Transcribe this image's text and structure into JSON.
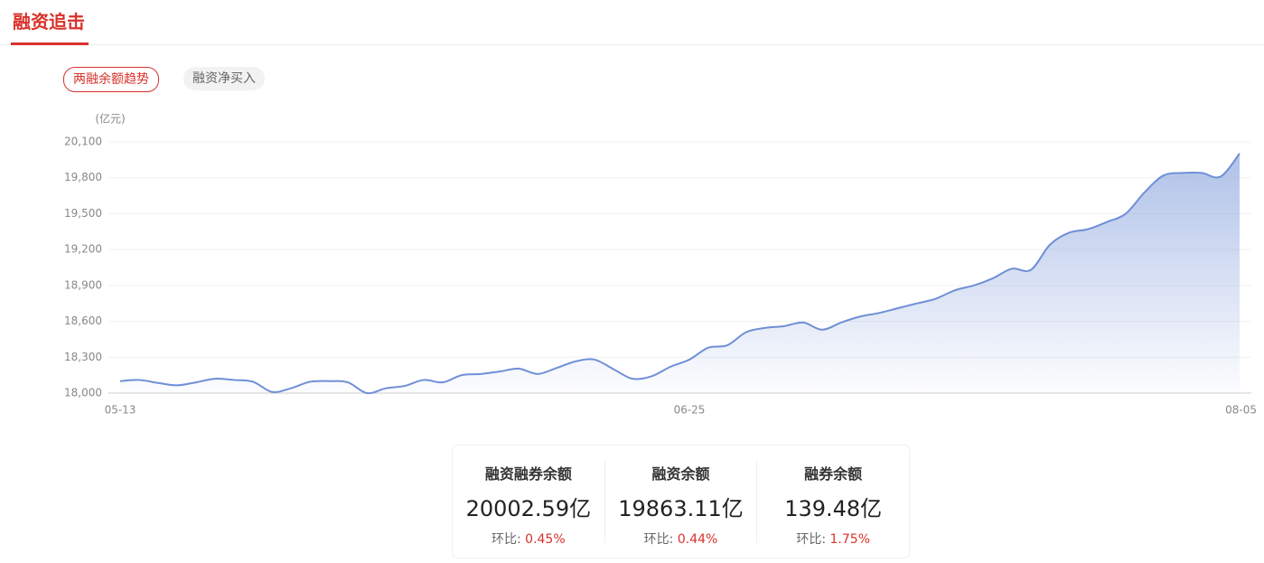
{
  "header": {
    "title": "融资追击"
  },
  "tabs": [
    "两融余额趋势",
    "融资净买入"
  ],
  "chart_data": {
    "type": "line",
    "y_unit": "(亿元)",
    "color": "#6f8fd6",
    "categories": [
      "05-13",
      null,
      null,
      null,
      null,
      null,
      null,
      null,
      null,
      null,
      null,
      null,
      null,
      null,
      null,
      null,
      null,
      null,
      null,
      null,
      null,
      null,
      null,
      null,
      null,
      null,
      null,
      null,
      null,
      null,
      "06-25",
      null,
      null,
      null,
      null,
      null,
      null,
      null,
      null,
      null,
      null,
      null,
      null,
      null,
      null,
      null,
      null,
      null,
      null,
      null,
      null,
      null,
      null,
      null,
      null,
      null,
      null,
      null,
      null,
      "08-05"
    ],
    "values": [
      18100,
      18110,
      18085,
      18065,
      18090,
      18120,
      18110,
      18095,
      18010,
      18040,
      18095,
      18100,
      18090,
      18000,
      18040,
      18060,
      18110,
      18090,
      18150,
      18160,
      18180,
      18205,
      18160,
      18210,
      18265,
      18280,
      18200,
      18120,
      18140,
      18220,
      18280,
      18380,
      18400,
      18510,
      18545,
      18560,
      18590,
      18530,
      18590,
      18640,
      18670,
      18710,
      18750,
      18790,
      18860,
      18900,
      18960,
      19040,
      19030,
      19240,
      19340,
      19370,
      19430,
      19500,
      19680,
      19820,
      19840,
      19840,
      19810,
      20002.59
    ],
    "ylim": [
      18000,
      20100
    ],
    "yticks": [
      {
        "value": 18000,
        "label": "18,000"
      },
      {
        "value": 18300,
        "label": "18,300"
      },
      {
        "value": 18600,
        "label": "18,600"
      },
      {
        "value": 18900,
        "label": "18,900"
      },
      {
        "value": 19200,
        "label": "19,200"
      },
      {
        "value": 19500,
        "label": "19,500"
      },
      {
        "value": 19800,
        "label": "19,800"
      },
      {
        "value": 20100,
        "label": "20,100"
      }
    ],
    "grid": true
  },
  "summary": [
    {
      "label": "融资融券余额",
      "value": "20002.59亿",
      "change_label": "环比:",
      "change": "0.45%"
    },
    {
      "label": "融资余额",
      "value": "19863.11亿",
      "change_label": "环比:",
      "change": "0.44%"
    },
    {
      "label": "融券余额",
      "value": "139.48亿",
      "change_label": "环比:",
      "change": "1.75%"
    }
  ]
}
